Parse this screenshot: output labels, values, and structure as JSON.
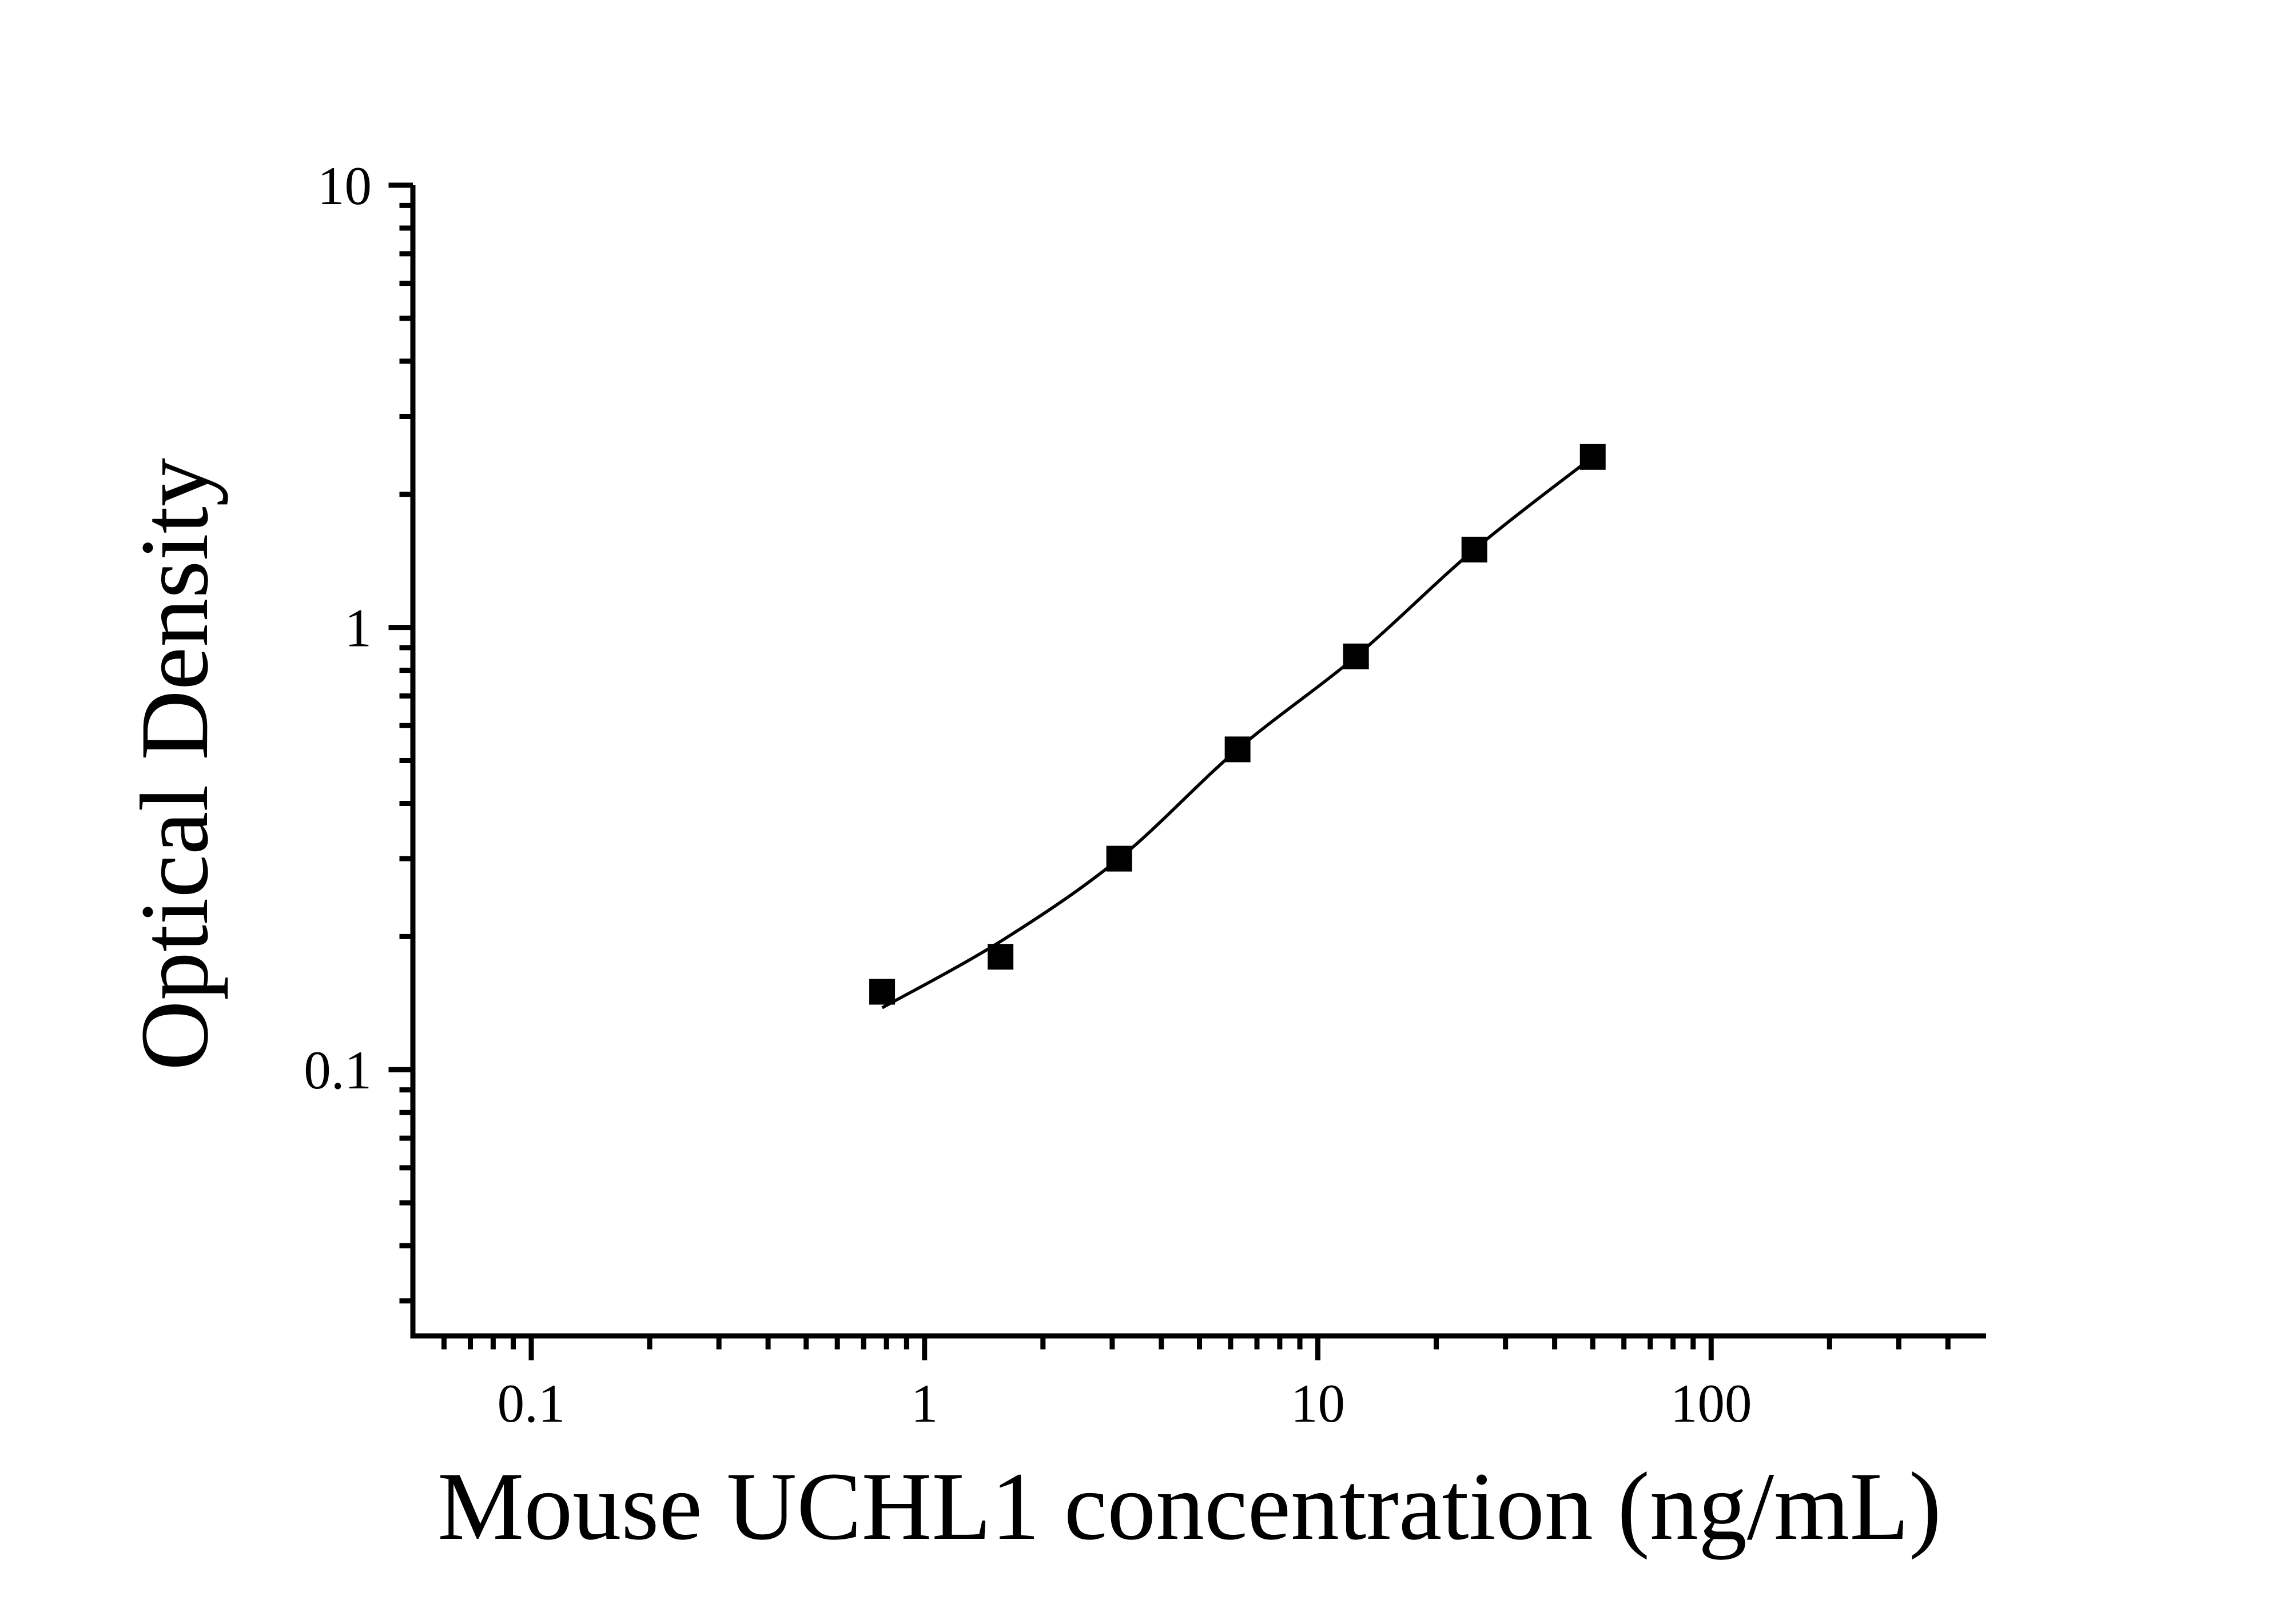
{
  "chart_data": {
    "type": "scatter",
    "title": "",
    "xlabel": "Mouse UCHL1 concentration (ng/mL)",
    "ylabel": "Optical Density",
    "x_scale": "log",
    "y_scale": "log",
    "xlim": [
      0.05,
      500
    ],
    "ylim": [
      0.025,
      10
    ],
    "grid": false,
    "legend": false,
    "background_color": "#ffffff",
    "axis_color": "#000000",
    "x_major_ticks": [
      {
        "value": 0.1,
        "label": "0.1"
      },
      {
        "value": 1,
        "label": "1"
      },
      {
        "value": 10,
        "label": "10"
      },
      {
        "value": 100,
        "label": "100"
      }
    ],
    "y_major_ticks": [
      {
        "value": 10,
        "label": "10"
      },
      {
        "value": 1,
        "label": "1"
      },
      {
        "value": 0.1,
        "label": "0.1"
      }
    ],
    "series": [
      {
        "name": "standard-curve-points",
        "marker": "filled-square",
        "marker_color": "#000000",
        "x": [
          0.78,
          1.56,
          3.125,
          6.25,
          12.5,
          25,
          50
        ],
        "y": [
          0.15,
          0.18,
          0.3,
          0.53,
          0.86,
          1.5,
          2.43
        ]
      }
    ],
    "fit_line": {
      "name": "4pl-fit-curve",
      "color": "#000000",
      "x": [
        0.78,
        1.56,
        3.125,
        6.25,
        12.5,
        25,
        50
      ],
      "y": [
        0.138,
        0.195,
        0.3,
        0.53,
        0.86,
        1.5,
        2.43
      ]
    }
  }
}
